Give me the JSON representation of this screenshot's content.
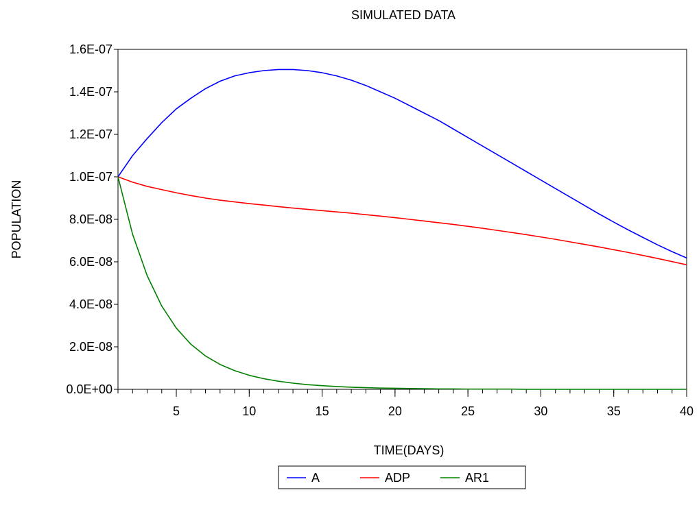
{
  "chart_data": {
    "type": "line",
    "title": "SIMULATED DATA",
    "xlabel": "TIME(DAYS)",
    "ylabel": "POPULATION",
    "xlim": [
      1,
      40
    ],
    "ylim": [
      0,
      1.6e-07
    ],
    "x_ticks": [
      5,
      10,
      15,
      20,
      25,
      30,
      35,
      40
    ],
    "x_tick_labels": [
      "5",
      "10",
      "15",
      "20",
      "25",
      "30",
      "35",
      "40"
    ],
    "y_ticks": [
      0,
      2e-08,
      4e-08,
      6e-08,
      8e-08,
      1e-07,
      1.2e-07,
      1.4e-07,
      1.6e-07
    ],
    "y_tick_labels": [
      "0.0E+00",
      "2.0E-08",
      "4.0E-08",
      "6.0E-08",
      "8.0E-08",
      "1.0E-07",
      "1.2E-07",
      "1.4E-07",
      "1.6E-07"
    ],
    "grid": false,
    "legend_position": "bottom-center",
    "x": [
      1,
      2,
      3,
      4,
      5,
      6,
      7,
      8,
      9,
      10,
      11,
      12,
      13,
      14,
      15,
      16,
      17,
      18,
      19,
      20,
      21,
      22,
      23,
      24,
      25,
      26,
      27,
      28,
      29,
      30,
      31,
      32,
      33,
      34,
      35,
      36,
      37,
      38,
      39,
      40
    ],
    "series": [
      {
        "name": "A",
        "color": "#0000ff",
        "values": [
          1e-07,
          1.1e-07,
          1.18e-07,
          1.255e-07,
          1.32e-07,
          1.37e-07,
          1.415e-07,
          1.45e-07,
          1.475e-07,
          1.49e-07,
          1.5e-07,
          1.505e-07,
          1.505e-07,
          1.5e-07,
          1.49e-07,
          1.475e-07,
          1.455e-07,
          1.43e-07,
          1.4e-07,
          1.37e-07,
          1.335e-07,
          1.3e-07,
          1.265e-07,
          1.225e-07,
          1.185e-07,
          1.145e-07,
          1.105e-07,
          1.065e-07,
          1.025e-07,
          9.85e-08,
          9.45e-08,
          9.05e-08,
          8.65e-08,
          8.25e-08,
          7.87e-08,
          7.5e-08,
          7.15e-08,
          6.8e-08,
          6.48e-08,
          6.18e-08
        ]
      },
      {
        "name": "ADP",
        "color": "#ff0000",
        "values": [
          1e-07,
          9.75e-08,
          9.55e-08,
          9.4e-08,
          9.25e-08,
          9.12e-08,
          9e-08,
          8.9e-08,
          8.82e-08,
          8.74e-08,
          8.67e-08,
          8.6e-08,
          8.53e-08,
          8.47e-08,
          8.41e-08,
          8.35e-08,
          8.29e-08,
          8.22e-08,
          8.15e-08,
          8.08e-08,
          8e-08,
          7.92e-08,
          7.84e-08,
          7.76e-08,
          7.67e-08,
          7.58e-08,
          7.48e-08,
          7.38e-08,
          7.28e-08,
          7.17e-08,
          7.06e-08,
          6.94e-08,
          6.82e-08,
          6.7e-08,
          6.57e-08,
          6.44e-08,
          6.3e-08,
          6.16e-08,
          6.01e-08,
          5.86e-08
        ]
      },
      {
        "name": "AR1",
        "color": "#008000",
        "values": [
          1e-07,
          7.3e-08,
          5.35e-08,
          3.92e-08,
          2.88e-08,
          2.12e-08,
          1.57e-08,
          1.17e-08,
          8.8e-09,
          6.6e-09,
          5e-09,
          3.8e-09,
          2.9e-09,
          2.2e-09,
          1.7e-09,
          1.3e-09,
          1e-09,
          8e-10,
          6e-10,
          5e-10,
          4e-10,
          3e-10,
          2e-10,
          2e-10,
          1e-10,
          1e-10,
          1e-10,
          1e-10,
          0,
          0,
          0,
          0,
          0,
          0,
          0,
          0,
          0,
          0,
          0,
          0
        ]
      }
    ]
  }
}
